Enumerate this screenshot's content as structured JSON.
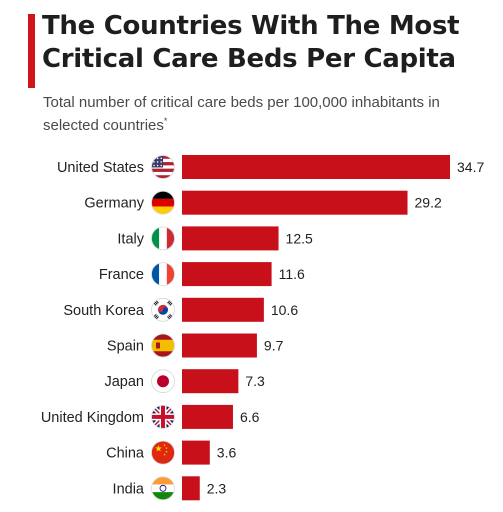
{
  "header": {
    "title": "The Countries With The Most Critical Care Beds Per Capita",
    "subtitle": "Total number of critical care beds per 100,000 inhabitants in selected countries",
    "subtitle_mark": "*"
  },
  "colors": {
    "accent": "#d1141a",
    "bar": "#c8101a"
  },
  "chart_data": {
    "type": "bar",
    "orientation": "horizontal",
    "title": "The Countries With The Most Critical Care Beds Per Capita",
    "subtitle": "Total number of critical care beds per 100,000 inhabitants in selected countries*",
    "categories": [
      "United States",
      "Germany",
      "Italy",
      "France",
      "South Korea",
      "Spain",
      "Japan",
      "United Kingdom",
      "China",
      "India"
    ],
    "values": [
      34.7,
      29.2,
      12.5,
      11.6,
      10.6,
      9.7,
      7.3,
      6.6,
      3.6,
      2.3
    ],
    "value_labels": [
      "34.7",
      "29.2",
      "12.5",
      "11.6",
      "10.6",
      "9.7",
      "7.3",
      "6.6",
      "3.6",
      "2.3"
    ],
    "flags": [
      "us-flag-icon",
      "germany-flag-icon",
      "italy-flag-icon",
      "france-flag-icon",
      "south-korea-flag-icon",
      "spain-flag-icon",
      "japan-flag-icon",
      "uk-flag-icon",
      "china-flag-icon",
      "india-flag-icon"
    ],
    "xlim": [
      0,
      34.7
    ],
    "grid": false,
    "legend": "none"
  }
}
